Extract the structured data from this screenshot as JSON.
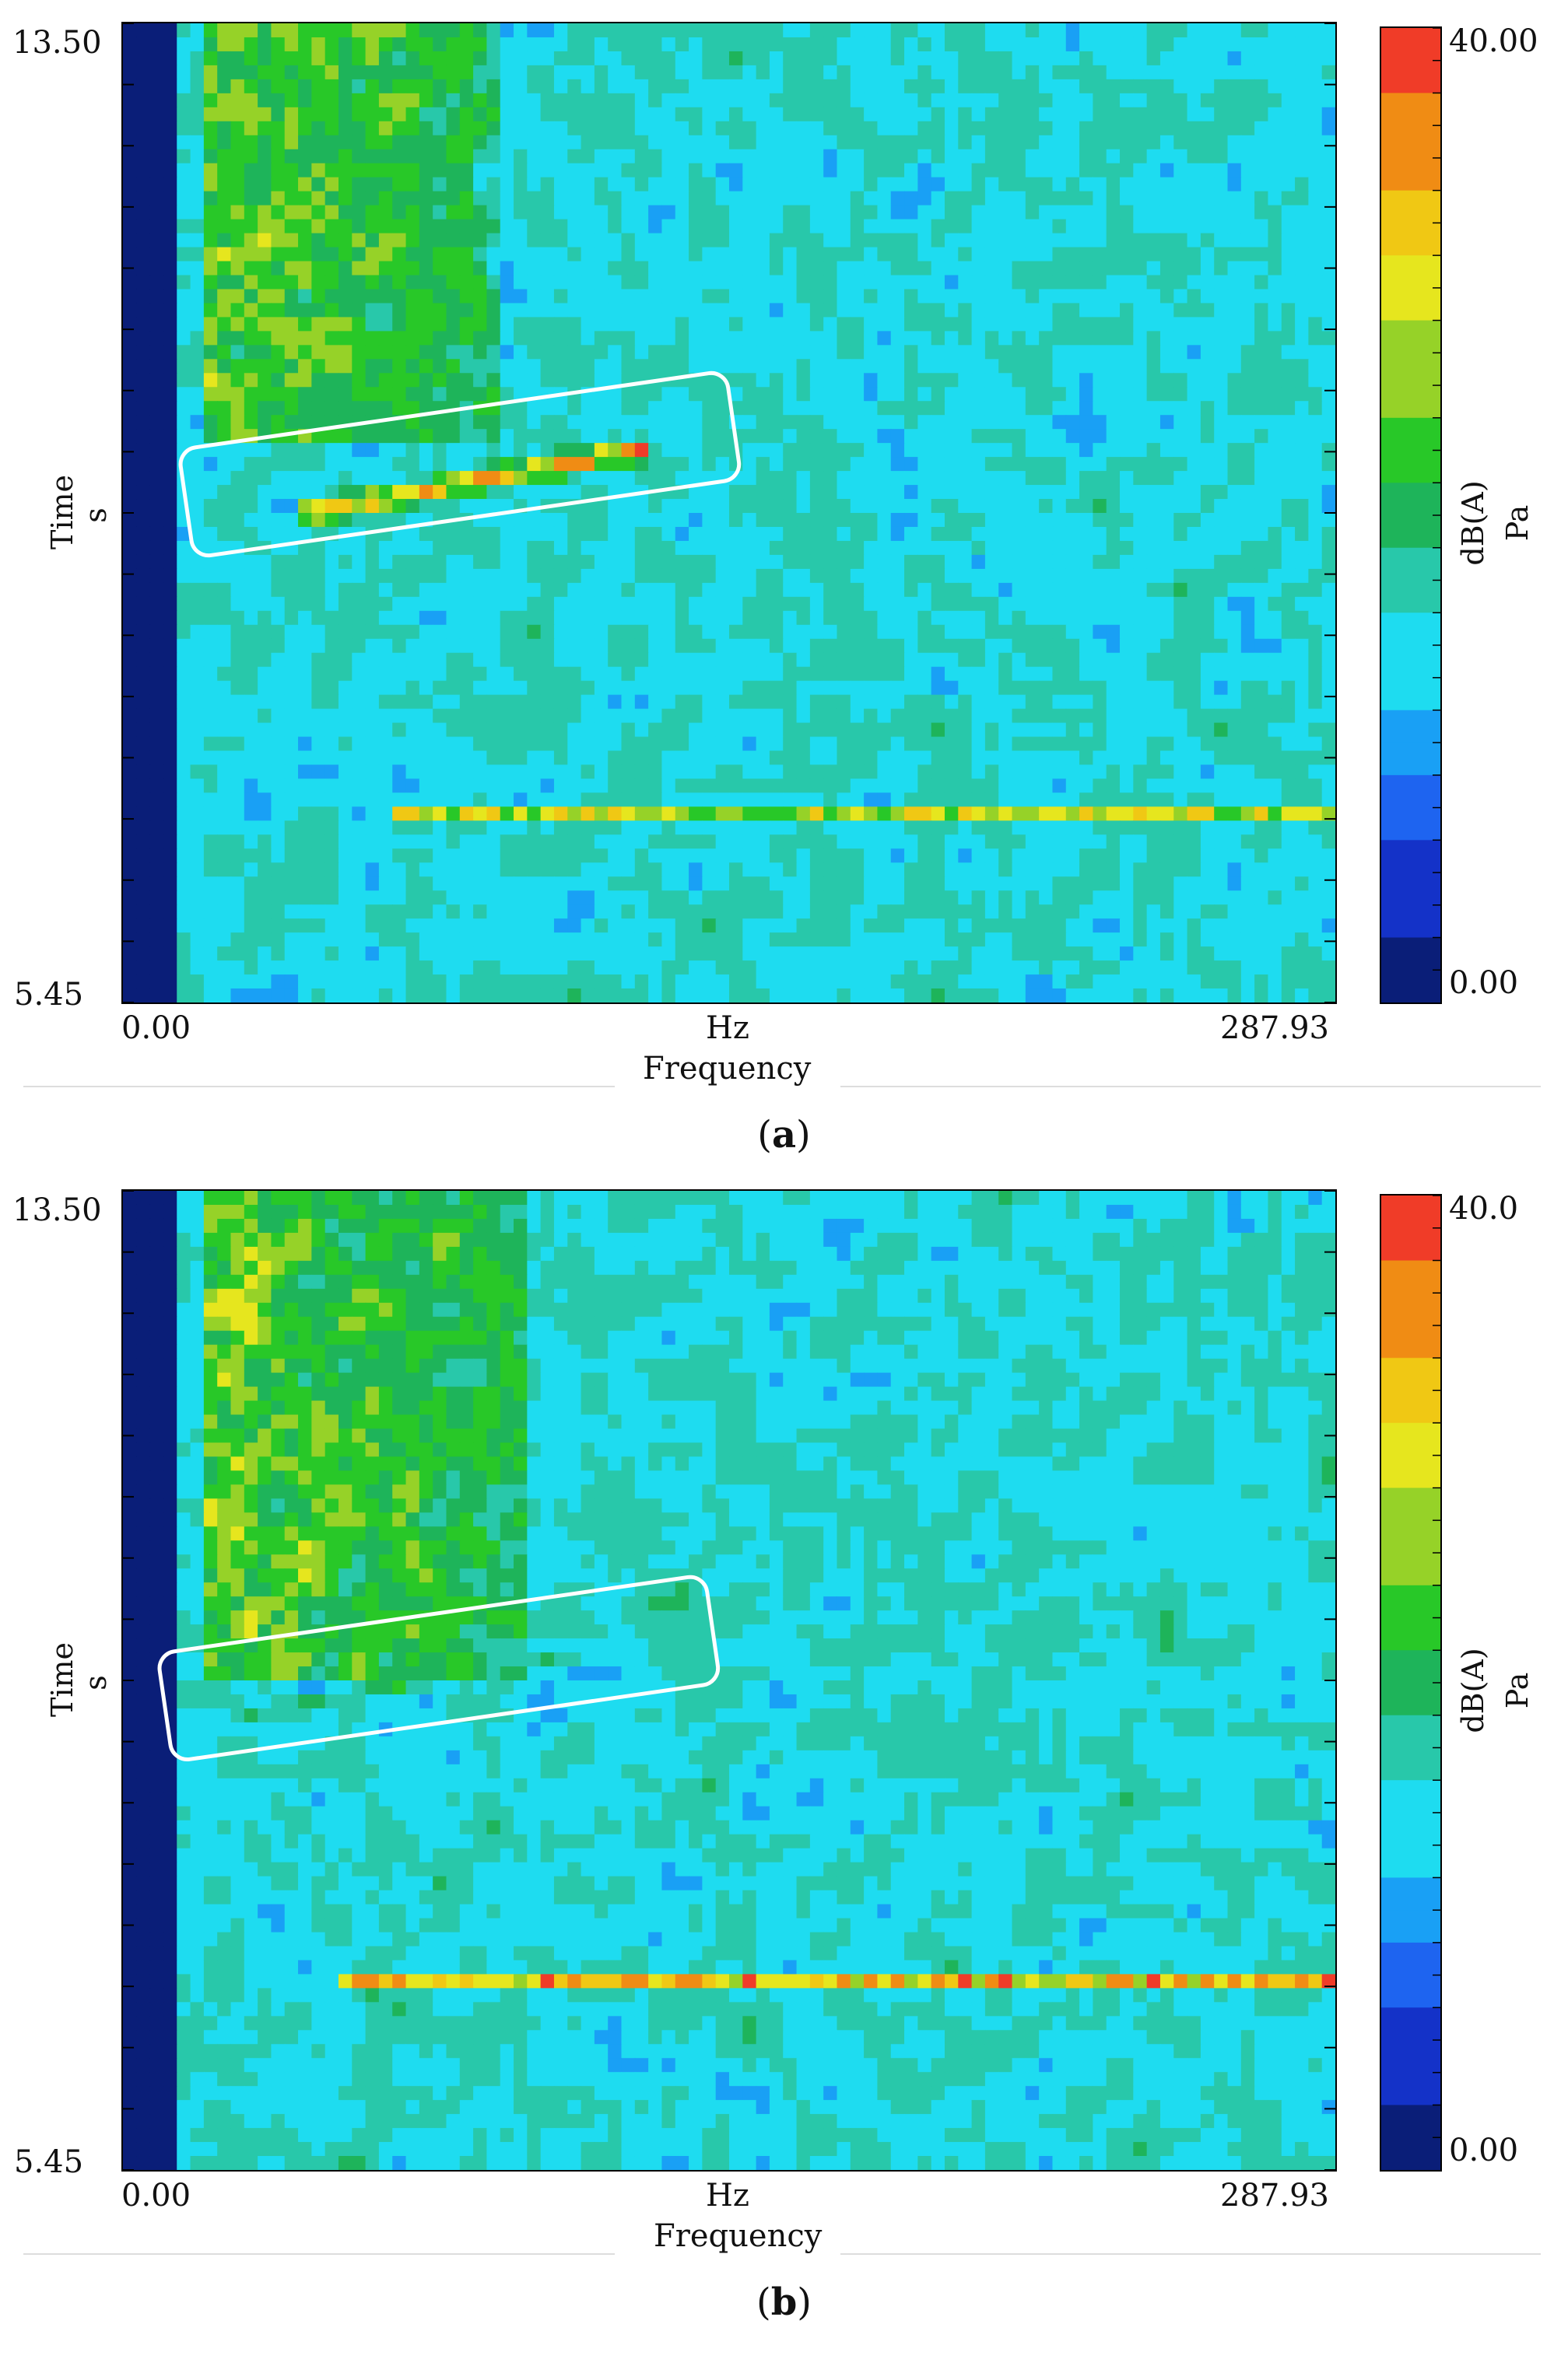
{
  "chart_data": [
    {
      "type": "heatmap",
      "panel_label": "a",
      "xlabel": "Frequency",
      "xunit": "Hz",
      "ylabel": "Time",
      "yunit": "s",
      "xlim": [
        0.0,
        287.93
      ],
      "ylim": [
        5.45,
        13.5
      ],
      "x_tick_labels": [
        "0.00",
        "287.93"
      ],
      "y_tick_labels": [
        "13.50",
        "5.45"
      ],
      "colorbar": {
        "unit_line1": "dB(A)",
        "unit_line2": "Pa",
        "min_label": "0.00",
        "max_label": "40.00",
        "range": [
          0,
          40
        ]
      },
      "highlight_box": {
        "f_start": 15,
        "f_end": 145,
        "t_low_at_start": 9.55,
        "t_high_at_end": 10.2
      },
      "features": [
        {
          "kind": "low-frequency-band",
          "f_from": 20,
          "f_to": 90,
          "t_from": 10.0,
          "t_to": 13.5,
          "level": 26
        },
        {
          "kind": "diagonal-ridge",
          "f_from": 40,
          "f_to": 125,
          "t_from": 9.45,
          "t_to": 10.0,
          "level": 36
        },
        {
          "kind": "horizontal-line",
          "t": 7.0,
          "f_from": 65,
          "f_to": 287.93,
          "level": 30
        }
      ]
    },
    {
      "type": "heatmap",
      "panel_label": "b",
      "xlabel": "Frequency",
      "xunit": "Hz",
      "ylabel": "Time",
      "yunit": "s",
      "xlim": [
        0.0,
        287.93
      ],
      "ylim": [
        5.45,
        13.5
      ],
      "x_tick_labels": [
        "0.00",
        "287.93"
      ],
      "y_tick_labels": [
        "13.50",
        "5.45"
      ],
      "colorbar": {
        "unit_line1": "dB(A)",
        "unit_line2": "Pa",
        "min_label": "0.00",
        "max_label": "40.0",
        "range": [
          0,
          40
        ]
      },
      "highlight_box": {
        "f_start": 10,
        "f_end": 140,
        "t_low_at_start": 9.25,
        "t_high_at_end": 9.9
      },
      "features": [
        {
          "kind": "low-frequency-band",
          "f_from": 20,
          "f_to": 95,
          "t_from": 9.5,
          "t_to": 13.5,
          "level": 26
        },
        {
          "kind": "diagonal-ridge",
          "f_from": 30,
          "f_to": 110,
          "t_from": 9.2,
          "t_to": 9.7,
          "level": 22
        },
        {
          "kind": "horizontal-line",
          "t": 7.0,
          "f_from": 50,
          "f_to": 287.93,
          "level": 34
        }
      ]
    }
  ],
  "colorscale": [
    "#0a1e78",
    "#1432c8",
    "#1e64f0",
    "#19a0f5",
    "#1edcf0",
    "#28c8aa",
    "#1eb45a",
    "#28c828",
    "#96d228",
    "#e6e61e",
    "#f0c814",
    "#f08c14",
    "#f03c28"
  ]
}
